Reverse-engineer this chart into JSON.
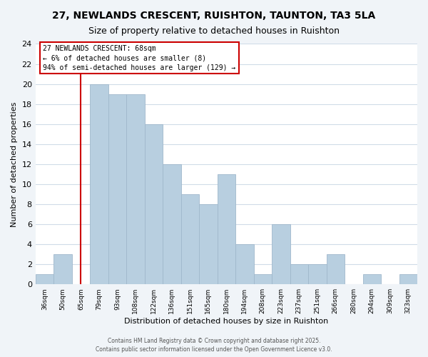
{
  "title": "27, NEWLANDS CRESCENT, RUISHTON, TAUNTON, TA3 5LA",
  "subtitle": "Size of property relative to detached houses in Ruishton",
  "xlabel": "Distribution of detached houses by size in Ruishton",
  "ylabel": "Number of detached properties",
  "bin_labels": [
    "36sqm",
    "50sqm",
    "65sqm",
    "79sqm",
    "93sqm",
    "108sqm",
    "122sqm",
    "136sqm",
    "151sqm",
    "165sqm",
    "180sqm",
    "194sqm",
    "208sqm",
    "223sqm",
    "237sqm",
    "251sqm",
    "266sqm",
    "280sqm",
    "294sqm",
    "309sqm",
    "323sqm"
  ],
  "bar_heights": [
    1,
    3,
    0,
    20,
    19,
    19,
    16,
    12,
    9,
    8,
    11,
    4,
    1,
    6,
    2,
    2,
    3,
    0,
    1,
    0,
    1
  ],
  "bar_color": "#b8cfe0",
  "bar_edge_color": "#a0b8cc",
  "vline_x_index": 2,
  "vline_color": "#cc0000",
  "ylim": [
    0,
    24
  ],
  "yticks": [
    0,
    2,
    4,
    6,
    8,
    10,
    12,
    14,
    16,
    18,
    20,
    22,
    24
  ],
  "annotation_title": "27 NEWLANDS CRESCENT: 68sqm",
  "annotation_line1": "← 6% of detached houses are smaller (8)",
  "annotation_line2": "94% of semi-detached houses are larger (129) →",
  "annotation_box_facecolor": "#ffffff",
  "annotation_box_edgecolor": "#cc0000",
  "footer_line1": "Contains HM Land Registry data © Crown copyright and database right 2025.",
  "footer_line2": "Contains public sector information licensed under the Open Government Licence v3.0.",
  "fig_facecolor": "#f0f4f8",
  "plot_facecolor": "#ffffff",
  "grid_color": "#d0dce8",
  "title_fontsize": 10,
  "subtitle_fontsize": 9,
  "xlabel_fontsize": 8,
  "ylabel_fontsize": 8,
  "ytick_fontsize": 8,
  "xtick_fontsize": 6.5
}
